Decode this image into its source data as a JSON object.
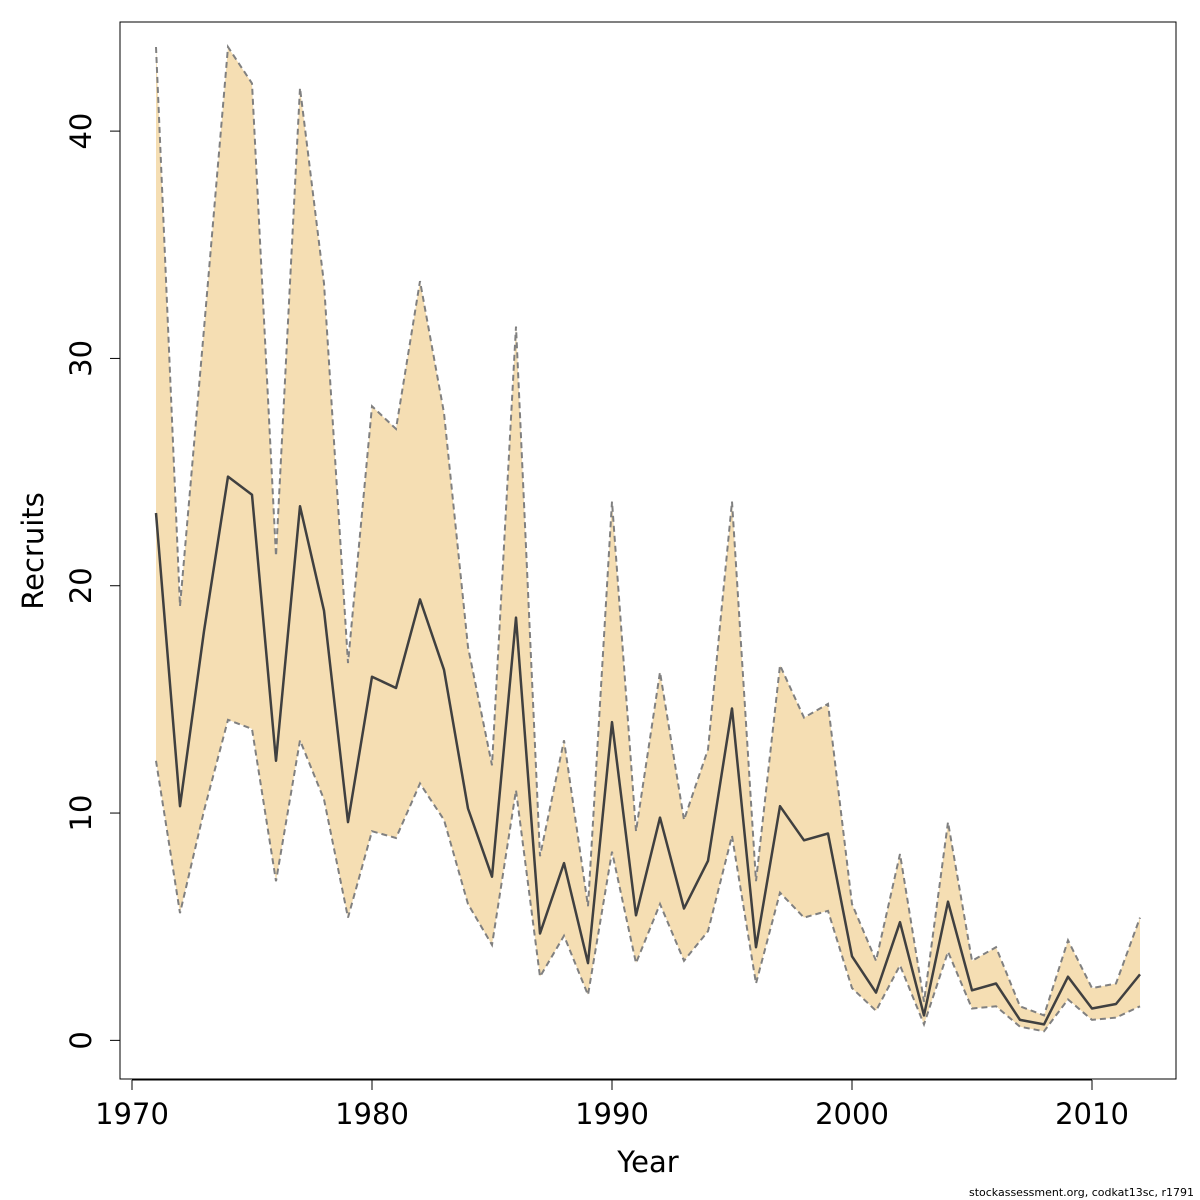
{
  "chart_data": {
    "type": "line",
    "xlabel": "Year",
    "ylabel": "Recruits",
    "xlim": [
      1969.5,
      2013.5
    ],
    "ylim": [
      -1.7,
      44.8
    ],
    "x_ticks": [
      1970,
      1980,
      1990,
      2000,
      2010
    ],
    "y_ticks": [
      0,
      10,
      20,
      30,
      40
    ],
    "grid": false,
    "colors": {
      "band": "#f5deb3",
      "estimate": "#404040",
      "bounds": "#808080"
    },
    "x": [
      1971,
      1972,
      1973,
      1974,
      1975,
      1976,
      1977,
      1978,
      1979,
      1980,
      1981,
      1982,
      1983,
      1984,
      1985,
      1986,
      1987,
      1988,
      1989,
      1990,
      1991,
      1992,
      1993,
      1994,
      1995,
      1996,
      1997,
      1998,
      1999,
      2000,
      2001,
      2002,
      2003,
      2004,
      2005,
      2006,
      2007,
      2008,
      2009,
      2010,
      2011,
      2012
    ],
    "series": [
      {
        "role": "estimate",
        "values": [
          23.2,
          10.3,
          18.0,
          24.8,
          24.0,
          12.3,
          23.5,
          18.9,
          9.6,
          16.0,
          15.5,
          19.4,
          16.3,
          10.2,
          7.2,
          18.6,
          4.7,
          7.8,
          3.4,
          14.0,
          5.5,
          9.8,
          5.8,
          7.9,
          14.6,
          4.1,
          10.3,
          8.8,
          9.1,
          3.7,
          2.1,
          5.2,
          1.1,
          6.1,
          2.2,
          2.5,
          0.9,
          0.7,
          2.8,
          1.4,
          1.6,
          2.9
        ]
      },
      {
        "role": "upper",
        "values": [
          43.7,
          19.1,
          31.3,
          43.7,
          42.1,
          21.3,
          41.9,
          33.3,
          16.6,
          27.9,
          26.9,
          33.4,
          27.6,
          17.3,
          12.1,
          31.4,
          8.1,
          13.2,
          5.9,
          23.7,
          9.2,
          16.2,
          9.7,
          12.8,
          23.7,
          7.0,
          16.5,
          14.2,
          14.8,
          6.0,
          3.5,
          8.2,
          1.7,
          9.6,
          3.5,
          4.1,
          1.5,
          1.1,
          4.4,
          2.3,
          2.5,
          5.4
        ]
      },
      {
        "role": "lower",
        "values": [
          12.3,
          5.6,
          10.1,
          14.1,
          13.7,
          7.0,
          13.2,
          10.6,
          5.4,
          9.2,
          8.9,
          11.3,
          9.7,
          6.0,
          4.2,
          11.0,
          2.8,
          4.6,
          2.0,
          8.3,
          3.4,
          6.0,
          3.5,
          4.8,
          9.0,
          2.5,
          6.5,
          5.4,
          5.7,
          2.3,
          1.3,
          3.3,
          0.7,
          3.9,
          1.4,
          1.5,
          0.6,
          0.4,
          1.8,
          0.9,
          1.0,
          1.5
        ]
      }
    ]
  },
  "footer": {
    "text": "stockassessment.org, codkat13sc, r1791"
  }
}
